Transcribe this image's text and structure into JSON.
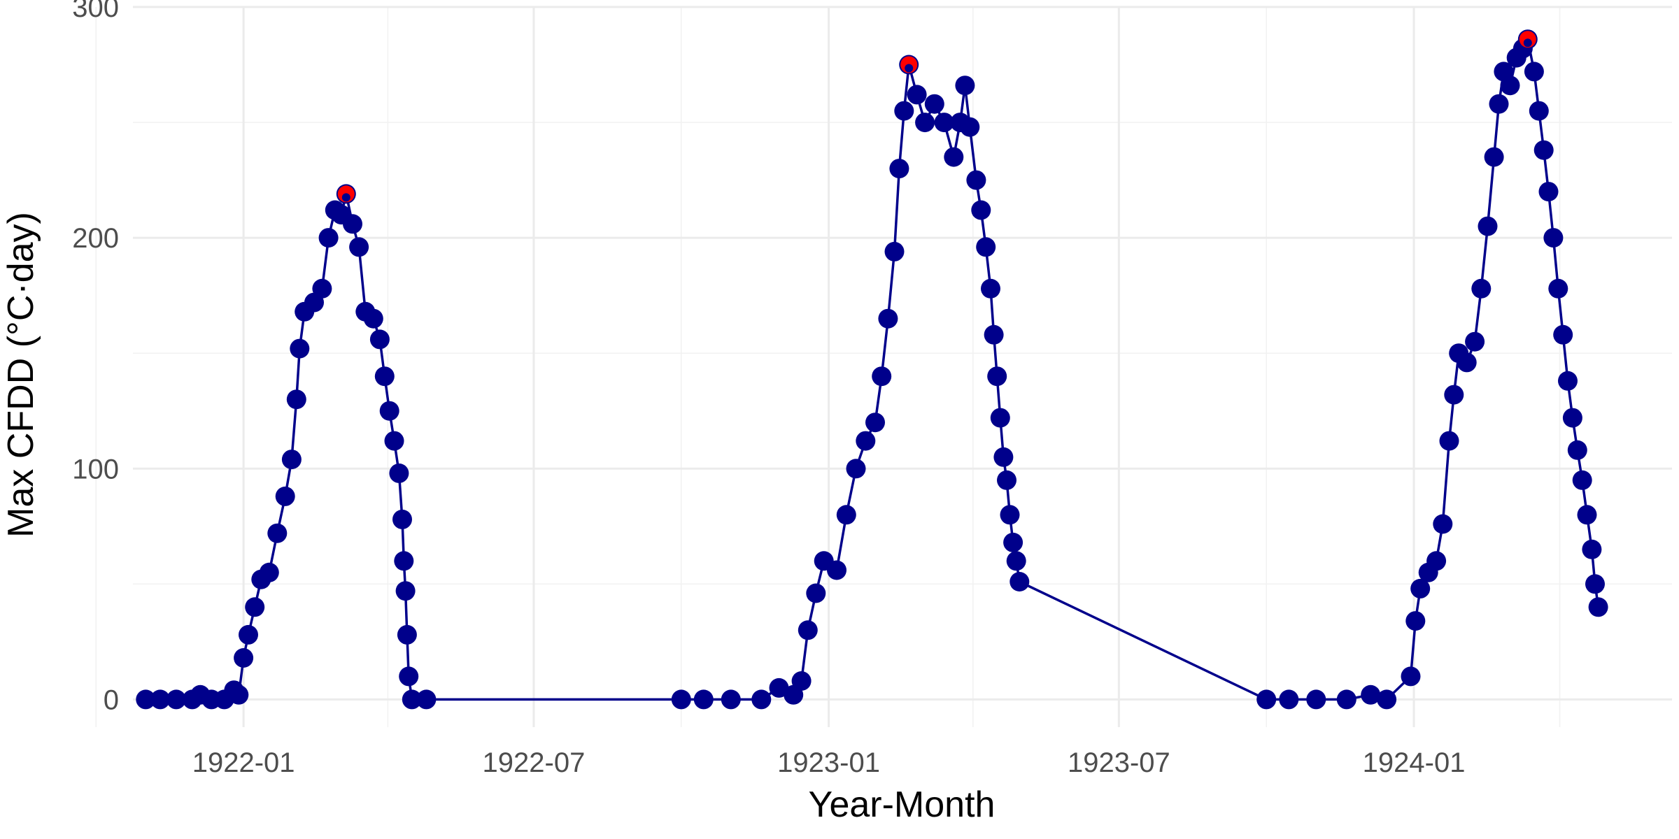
{
  "chart_data": {
    "type": "scatter",
    "title": "",
    "xlabel": "Year-Month",
    "ylabel": "Max CFDD (°C·day)",
    "x_range": [
      "1921-10-24",
      "1924-06-10"
    ],
    "ylim": [
      -12,
      300
    ],
    "y_ticks": [
      0,
      100,
      200,
      300
    ],
    "x_ticks": [
      {
        "date": "1922-01-01",
        "label": "1922-01"
      },
      {
        "date": "1922-07-01",
        "label": "1922-07"
      },
      {
        "date": "1923-01-01",
        "label": "1923-01"
      },
      {
        "date": "1923-07-01",
        "label": "1923-07"
      },
      {
        "date": "1924-01-01",
        "label": "1924-01"
      }
    ],
    "x_minor_ticks": [
      "1921-10-01",
      "1922-04-01",
      "1922-10-01",
      "1923-04-01",
      "1923-10-01",
      "1924-04-01"
    ],
    "grid": true,
    "colors": {
      "series": "#00008B",
      "peak": "#FF0000"
    },
    "series": [
      {
        "values": [
          [
            "1921-11-01",
            0
          ],
          [
            "1921-11-10",
            0
          ],
          [
            "1921-11-20",
            0
          ],
          [
            "1921-11-30",
            0
          ],
          [
            "1921-12-05",
            2
          ],
          [
            "1921-12-12",
            0
          ],
          [
            "1921-12-20",
            0
          ],
          [
            "1921-12-26",
            4
          ],
          [
            "1921-12-29",
            2
          ],
          [
            "1922-01-01",
            18
          ],
          [
            "1922-01-04",
            28
          ],
          [
            "1922-01-08",
            40
          ],
          [
            "1922-01-12",
            52
          ],
          [
            "1922-01-17",
            55
          ],
          [
            "1922-01-22",
            72
          ],
          [
            "1922-01-27",
            88
          ],
          [
            "1922-01-31",
            104
          ],
          [
            "1922-02-03",
            130
          ],
          [
            "1922-02-05",
            152
          ],
          [
            "1922-02-08",
            168
          ],
          [
            "1922-02-14",
            172
          ],
          [
            "1922-02-19",
            178
          ],
          [
            "1922-02-23",
            200
          ],
          [
            "1922-02-27",
            212
          ],
          [
            "1922-03-03",
            210
          ],
          [
            "1922-03-06",
            219
          ],
          [
            "1922-03-10",
            206
          ],
          [
            "1922-03-14",
            196
          ],
          [
            "1922-03-18",
            168
          ],
          [
            "1922-03-23",
            165
          ],
          [
            "1922-03-27",
            156
          ],
          [
            "1922-03-30",
            140
          ],
          [
            "1922-04-02",
            125
          ],
          [
            "1922-04-05",
            112
          ],
          [
            "1922-04-08",
            98
          ],
          [
            "1922-04-10",
            78
          ],
          [
            "1922-04-11",
            60
          ],
          [
            "1922-04-12",
            47
          ],
          [
            "1922-04-13",
            28
          ],
          [
            "1922-04-14",
            10
          ],
          [
            "1922-04-16",
            0
          ],
          [
            "1922-04-25",
            0
          ],
          [
            "1922-10-01",
            0
          ],
          [
            "1922-10-15",
            0
          ],
          [
            "1922-11-01",
            0
          ],
          [
            "1922-11-20",
            0
          ],
          [
            "1922-12-01",
            5
          ],
          [
            "1922-12-10",
            2
          ],
          [
            "1922-12-15",
            8
          ],
          [
            "1922-12-19",
            30
          ],
          [
            "1922-12-24",
            46
          ],
          [
            "1922-12-29",
            60
          ],
          [
            "1923-01-06",
            56
          ],
          [
            "1923-01-12",
            80
          ],
          [
            "1923-01-18",
            100
          ],
          [
            "1923-01-24",
            112
          ],
          [
            "1923-01-30",
            120
          ],
          [
            "1923-02-03",
            140
          ],
          [
            "1923-02-07",
            165
          ],
          [
            "1923-02-11",
            194
          ],
          [
            "1923-02-14",
            230
          ],
          [
            "1923-02-17",
            255
          ],
          [
            "1923-02-20",
            275
          ],
          [
            "1923-02-25",
            262
          ],
          [
            "1923-03-02",
            250
          ],
          [
            "1923-03-08",
            258
          ],
          [
            "1923-03-14",
            250
          ],
          [
            "1923-03-20",
            235
          ],
          [
            "1923-03-24",
            250
          ],
          [
            "1923-03-27",
            266
          ],
          [
            "1923-03-30",
            248
          ],
          [
            "1923-04-03",
            225
          ],
          [
            "1923-04-06",
            212
          ],
          [
            "1923-04-09",
            196
          ],
          [
            "1923-04-12",
            178
          ],
          [
            "1923-04-14",
            158
          ],
          [
            "1923-04-16",
            140
          ],
          [
            "1923-04-18",
            122
          ],
          [
            "1923-04-20",
            105
          ],
          [
            "1923-04-22",
            95
          ],
          [
            "1923-04-24",
            80
          ],
          [
            "1923-04-26",
            68
          ],
          [
            "1923-04-28",
            60
          ],
          [
            "1923-04-30",
            51
          ],
          [
            "1923-10-01",
            0
          ],
          [
            "1923-10-15",
            0
          ],
          [
            "1923-11-01",
            0
          ],
          [
            "1923-11-20",
            0
          ],
          [
            "1923-12-05",
            2
          ],
          [
            "1923-12-15",
            0
          ],
          [
            "1923-12-30",
            10
          ],
          [
            "1924-01-02",
            34
          ],
          [
            "1924-01-05",
            48
          ],
          [
            "1924-01-10",
            55
          ],
          [
            "1924-01-15",
            60
          ],
          [
            "1924-01-19",
            76
          ],
          [
            "1924-01-23",
            112
          ],
          [
            "1924-01-26",
            132
          ],
          [
            "1924-01-29",
            150
          ],
          [
            "1924-02-03",
            146
          ],
          [
            "1924-02-08",
            155
          ],
          [
            "1924-02-12",
            178
          ],
          [
            "1924-02-16",
            205
          ],
          [
            "1924-02-20",
            235
          ],
          [
            "1924-02-23",
            258
          ],
          [
            "1924-02-26",
            272
          ],
          [
            "1924-03-01",
            266
          ],
          [
            "1924-03-05",
            278
          ],
          [
            "1924-03-09",
            282
          ],
          [
            "1924-03-12",
            286
          ],
          [
            "1924-03-16",
            272
          ],
          [
            "1924-03-19",
            255
          ],
          [
            "1924-03-22",
            238
          ],
          [
            "1924-03-25",
            220
          ],
          [
            "1924-03-28",
            200
          ],
          [
            "1924-03-31",
            178
          ],
          [
            "1924-04-03",
            158
          ],
          [
            "1924-04-06",
            138
          ],
          [
            "1924-04-09",
            122
          ],
          [
            "1924-04-12",
            108
          ],
          [
            "1924-04-15",
            95
          ],
          [
            "1924-04-18",
            80
          ],
          [
            "1924-04-21",
            65
          ],
          [
            "1924-04-23",
            50
          ],
          [
            "1924-04-25",
            40
          ]
        ]
      }
    ],
    "peaks": [
      [
        "1922-03-06",
        219
      ],
      [
        "1923-02-20",
        275
      ],
      [
        "1924-03-12",
        286
      ]
    ]
  }
}
